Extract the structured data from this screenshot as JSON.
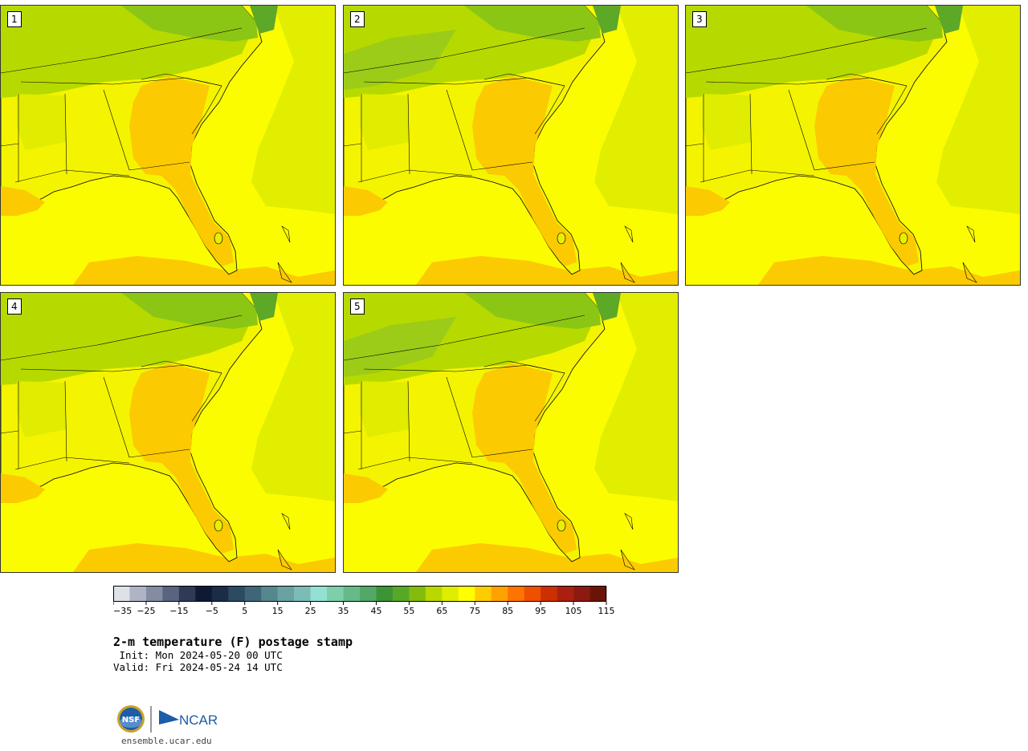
{
  "panels": [
    {
      "label": "1"
    },
    {
      "label": "2"
    },
    {
      "label": "3"
    },
    {
      "label": "4"
    },
    {
      "label": "5"
    }
  ],
  "colorbar": {
    "colors": [
      "#dde1e8",
      "#aeb4c6",
      "#848ca2",
      "#5a6480",
      "#2f3a56",
      "#0e1a34",
      "#1b2c48",
      "#2c4a62",
      "#3e6678",
      "#56868e",
      "#6aa2a2",
      "#7cbcb6",
      "#94e0d2",
      "#7ccfaa",
      "#66ba8a",
      "#52a866",
      "#3c9436",
      "#58a828",
      "#84bc0e",
      "#b8d800",
      "#e0ec00",
      "#ffff00",
      "#ffcc00",
      "#ffa200",
      "#ff7400",
      "#ee5000",
      "#cc3000",
      "#aa2010",
      "#8c1a10",
      "#6a1408"
    ],
    "tick_labels": [
      "−35",
      "−25",
      "−15",
      "−5",
      "5",
      "15",
      "25",
      "35",
      "45",
      "55",
      "65",
      "75",
      "85",
      "95",
      "105",
      "115"
    ]
  },
  "title": "2-m temperature (F) postage stamp",
  "init_line": " Init: Mon 2024-05-20 00 UTC",
  "valid_line": "Valid: Fri 2024-05-24 14 UTC",
  "site": "ensemble.ucar.edu",
  "logos": {
    "nsf": "NSF",
    "ncar": "NCAR"
  }
}
